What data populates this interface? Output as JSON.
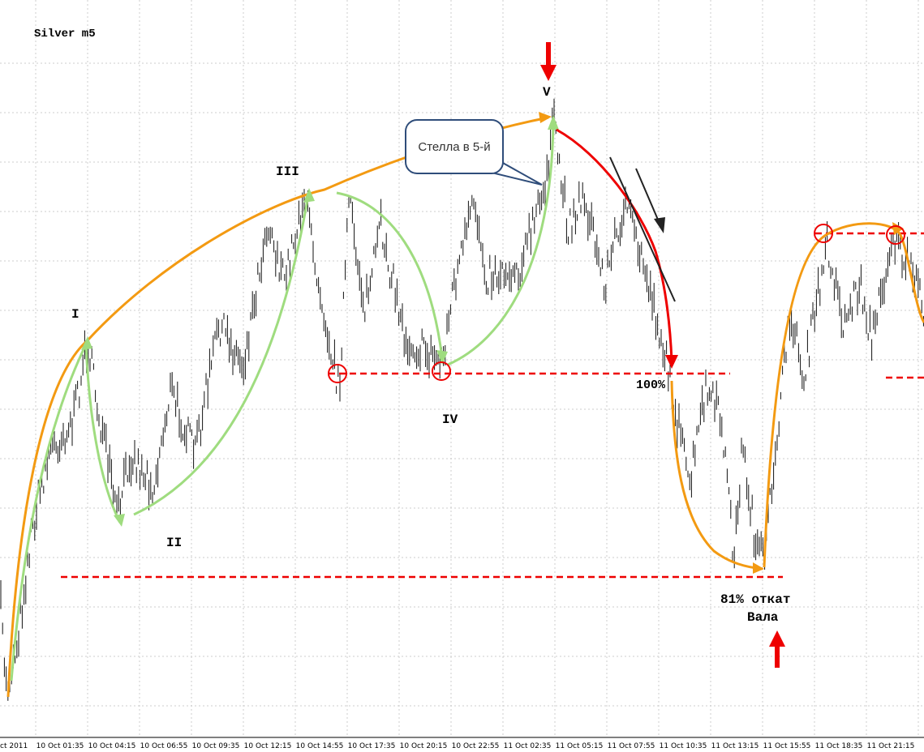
{
  "header": {
    "title": "Silver m5"
  },
  "wave_labels": [
    "I",
    "II",
    "III",
    "IV",
    "V"
  ],
  "callout": "Стелла в 5-й",
  "annotations": {
    "level": "100%",
    "retrace_line1": "81% откат",
    "retrace_line2": "Вала"
  },
  "x_axis": {
    "labels": [
      "ct 2011",
      "10 Oct 01:35",
      "10 Oct 04:15",
      "10 Oct 06:55",
      "10 Oct 09:35",
      "10 Oct 12:15",
      "10 Oct 14:55",
      "10 Oct 17:35",
      "10 Oct 20:15",
      "10 Oct 22:55",
      "11 Oct 02:35",
      "11 Oct 05:15",
      "11 Oct 07:55",
      "11 Oct 10:35",
      "11 Oct 13:15",
      "11 Oct 15:55",
      "11 Oct 18:35",
      "11 Oct 21:15",
      "1"
    ]
  }
}
